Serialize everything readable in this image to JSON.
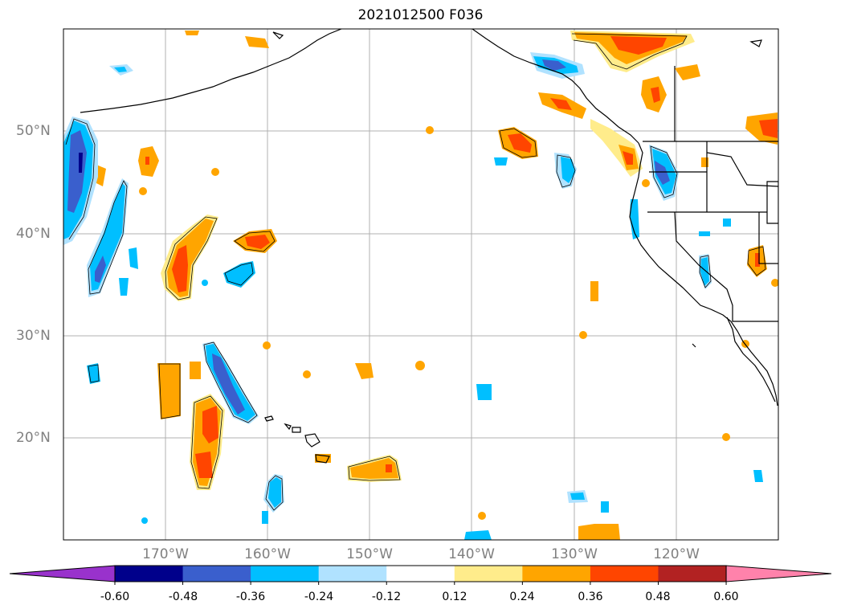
{
  "title": "2021012500 F036",
  "map": {
    "projection": "equirectangular",
    "lon_range": [
      -180,
      -110
    ],
    "lat_range": [
      10,
      60
    ],
    "grid": true,
    "lat_ticks": [
      "20°N",
      "30°N",
      "40°N",
      "50°N"
    ],
    "lon_ticks": [
      "170°W",
      "160°W",
      "150°W",
      "140°W",
      "130°W",
      "120°W"
    ]
  },
  "colorbar": {
    "ticks": [
      "-0.60",
      "-0.48",
      "-0.36",
      "-0.24",
      "-0.12",
      "0.12",
      "0.24",
      "0.36",
      "0.48",
      "0.60"
    ],
    "colors": [
      "#9932cc",
      "#00008b",
      "#3a5fcd",
      "#00bfff",
      "#b0e2ff",
      "#ffffff",
      "#ffec8b",
      "#ffa500",
      "#ff4500",
      "#b22222",
      "#ff82ab"
    ],
    "extend": "both"
  }
}
